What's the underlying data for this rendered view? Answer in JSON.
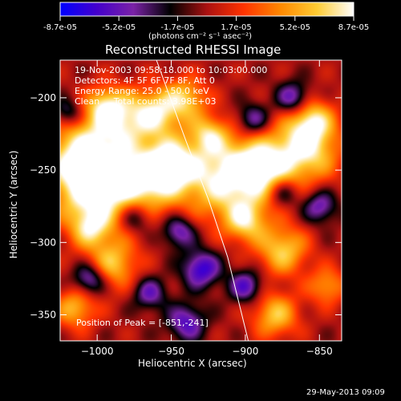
{
  "colorbar": {
    "tick_labels": [
      "-8.7e-05",
      "-5.2e-05",
      "-1.7e-05",
      "1.7e-05",
      "5.2e-05",
      "8.7e-05"
    ],
    "units": "(photons cm⁻² s⁻¹ asec⁻²)",
    "colormap_stops": [
      "#0000ff",
      "#4400cc",
      "#7a22a6",
      "#000000",
      "#aa1111",
      "#ff3300",
      "#ff8800",
      "#ffcc33",
      "#ffffff"
    ]
  },
  "chart_data": {
    "type": "heatmap",
    "title": "Reconstructed RHESSI Image",
    "xlabel": "Heliocentric X (arcsec)",
    "ylabel": "Heliocentric Y (arcsec)",
    "xlim": [
      -1025,
      -835
    ],
    "ylim": [
      -368,
      -174
    ],
    "xticks": [
      -1000,
      -950,
      -900,
      -850
    ],
    "yticks": [
      -350,
      -300,
      -250,
      -200
    ],
    "xtick_labels": [
      "−1000",
      "−950",
      "−900",
      "−850"
    ],
    "ytick_labels": [
      "−350",
      "−300",
      "−250",
      "−200"
    ],
    "color_range": [
      -8.7e-05,
      8.7e-05
    ],
    "peak_position": [
      -851,
      -241
    ],
    "limb_curve": [
      [
        -960,
        -174
      ],
      [
        -940,
        -230
      ],
      [
        -925,
        -270
      ],
      [
        -912,
        -310
      ],
      [
        -898,
        -368
      ]
    ],
    "annotations": [
      "19-Nov-2003 09:58:18.000 to 10:03:00.000",
      "Detectors: 4F 5F 6F 7F 8F, Att 0",
      "Energy Range: 25.0 - 50.0 keV",
      "Clean     Total counts: 3.98E+03"
    ],
    "peak_label": "Position of Peak = [-851,-241]"
  },
  "footer": {
    "timestamp": "29-May-2013 09:09"
  }
}
